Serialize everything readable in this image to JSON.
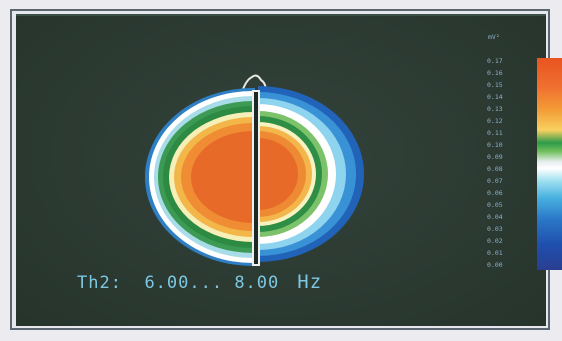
{
  "caption": {
    "channel": "Th2:",
    "range": "6.00... 8.00",
    "unit": "Hz"
  },
  "scale": {
    "unit": "mV²",
    "labels": [
      "0.17",
      "0.16",
      "0.15",
      "0.14",
      "0.13",
      "0.12",
      "0.11",
      "0.10",
      "0.09",
      "0.08",
      "0.07",
      "0.06",
      "0.05",
      "0.04",
      "0.03",
      "0.02",
      "0.01",
      "0.00"
    ]
  }
}
